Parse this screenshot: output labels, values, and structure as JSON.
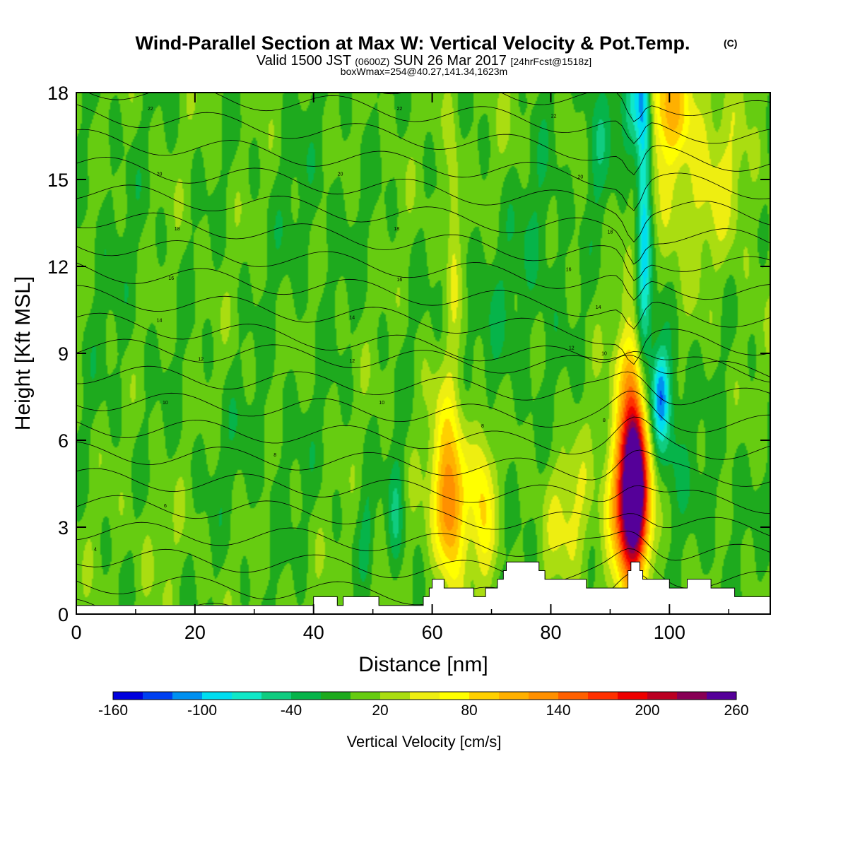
{
  "title": {
    "main": "Wind-Parallel Section at Max W: Vertical Velocity & Pot.Temp.",
    "copyright": "(C)",
    "valid_a": "Valid 1500 JST ",
    "valid_b": "(0600Z)",
    "valid_c": " SUN 26 Mar 2017 ",
    "valid_d": "[24hrFcst@1518z]",
    "box": "boxWmax=254@40.27,141.34,1623m"
  },
  "chart_data": {
    "type": "heatmap",
    "description_fields": "filled vertical velocity with potential temperature isentropes",
    "xlabel": "Distance [nm]",
    "ylabel": "Height [Kft MSL]",
    "xlim": [
      0,
      117
    ],
    "ylim": [
      0,
      18
    ],
    "xticks": [
      0,
      20,
      40,
      60,
      80,
      100
    ],
    "yticks": [
      0,
      3,
      6,
      9,
      12,
      15,
      18
    ],
    "colorbar": {
      "label": "Vertical Velocity [cm/s]",
      "tick_labels": [
        -160,
        -100,
        -40,
        20,
        80,
        140,
        200,
        260
      ],
      "levels": [
        -160,
        -140,
        -120,
        -100,
        -80,
        -60,
        -40,
        -20,
        0,
        20,
        40,
        60,
        80,
        100,
        120,
        140,
        160,
        180,
        200,
        220,
        240,
        260
      ],
      "colors": [
        "#0000dd",
        "#0040f0",
        "#0090f0",
        "#00ddf0",
        "#10e8c8",
        "#10cc80",
        "#06b44a",
        "#1eaa1e",
        "#66cc11",
        "#aadd11",
        "#eeee11",
        "#ffff00",
        "#ffd000",
        "#ffb000",
        "#ff9000",
        "#ff6000",
        "#ff3000",
        "#ee0000",
        "#bb0022",
        "#880055",
        "#550099"
      ]
    },
    "background_w": 5,
    "updrafts": [
      {
        "x": 94,
        "z": 5.0,
        "sx": 1.6,
        "sz": 2.3,
        "w": 260
      },
      {
        "x": 94,
        "z": 3.6,
        "sx": 2.4,
        "sz": 1.6,
        "w": 105
      },
      {
        "x": 91.5,
        "z": 3.8,
        "sx": 1.6,
        "sz": 2.2,
        "w": 55
      },
      {
        "x": 93.5,
        "z": 8.6,
        "sx": 1.8,
        "sz": 1.0,
        "w": 40
      },
      {
        "x": 63,
        "z": 3.6,
        "sx": 1.6,
        "sz": 1.6,
        "w": 110
      },
      {
        "x": 63,
        "z": 5.3,
        "sx": 2.6,
        "sz": 2.4,
        "w": 55
      },
      {
        "x": 68.5,
        "z": 3.8,
        "sx": 1.3,
        "sz": 2.0,
        "w": 70
      },
      {
        "x": 83,
        "z": 3.4,
        "sx": 3.2,
        "sz": 1.6,
        "w": 38
      },
      {
        "x": 63.5,
        "z": 13.5,
        "sx": 0.9,
        "sz": 2.8,
        "w": 45
      },
      {
        "x": 99,
        "z": 17.6,
        "sx": 3.5,
        "sz": 1.3,
        "w": 75
      },
      {
        "x": 101,
        "z": 15.5,
        "sx": 4.5,
        "sz": 2.8,
        "w": 38
      },
      {
        "x": 110,
        "z": 14.8,
        "sx": 3.5,
        "sz": 2.0,
        "w": 28
      },
      {
        "x": 75,
        "z": 16.5,
        "sx": 3.0,
        "sz": 2.0,
        "w": 12
      },
      {
        "x": 50,
        "z": 1.0,
        "sx": 3.5,
        "sz": 1.0,
        "w": 12
      },
      {
        "x": 13,
        "z": 2.5,
        "sx": 4.0,
        "sz": 1.5,
        "w": 10
      }
    ],
    "downdrafts": [
      {
        "x": 95.7,
        "z": 14.5,
        "sx": 0.9,
        "sz": 4.5,
        "w": -110
      },
      {
        "x": 94.5,
        "z": 17.5,
        "sx": 2.2,
        "sz": 1.3,
        "w": -90
      },
      {
        "x": 98.5,
        "z": 7.6,
        "sx": 1.0,
        "sz": 1.1,
        "w": -85
      },
      {
        "x": 99,
        "z": 7.0,
        "sx": 2.4,
        "sz": 2.2,
        "w": -45
      },
      {
        "x": 54,
        "z": 3.0,
        "sx": 1.0,
        "sz": 1.8,
        "w": -45
      },
      {
        "x": 49,
        "z": 2.3,
        "sx": 1.0,
        "sz": 1.5,
        "w": -30
      },
      {
        "x": 78,
        "z": 14.0,
        "sx": 3.0,
        "sz": 3.0,
        "w": -22
      },
      {
        "x": 88,
        "z": 16.5,
        "sx": 1.5,
        "sz": 2.0,
        "w": -35
      },
      {
        "x": 70,
        "z": 10.0,
        "sx": 6.0,
        "sz": 3.0,
        "w": -16
      },
      {
        "x": 40,
        "z": 14.0,
        "sx": 6.0,
        "sz": 3.0,
        "w": -12
      },
      {
        "x": 6,
        "z": 12.0,
        "sx": 5.0,
        "sz": 4.0,
        "w": -10
      },
      {
        "x": 30,
        "z": 5.5,
        "sx": 8.0,
        "sz": 2.0,
        "w": -12
      },
      {
        "x": 108,
        "z": 4.0,
        "sx": 4.0,
        "sz": 2.0,
        "w": -14
      }
    ],
    "terrain": [
      [
        0,
        0.3
      ],
      [
        40,
        0.3
      ],
      [
        40,
        0.6
      ],
      [
        44,
        0.6
      ],
      [
        44,
        0.3
      ],
      [
        45,
        0.3
      ],
      [
        45,
        0.6
      ],
      [
        51,
        0.6
      ],
      [
        51,
        0.3
      ],
      [
        58.5,
        0.3
      ],
      [
        58.5,
        0.6
      ],
      [
        59.5,
        0.6
      ],
      [
        59.5,
        0.9
      ],
      [
        60,
        0.9
      ],
      [
        60,
        1.2
      ],
      [
        62,
        1.2
      ],
      [
        62,
        0.9
      ],
      [
        67,
        0.9
      ],
      [
        67,
        0.6
      ],
      [
        69,
        0.6
      ],
      [
        69,
        0.9
      ],
      [
        71,
        0.9
      ],
      [
        71,
        1.2
      ],
      [
        72,
        1.2
      ],
      [
        72,
        1.5
      ],
      [
        72.5,
        1.5
      ],
      [
        72.5,
        1.8
      ],
      [
        78,
        1.8
      ],
      [
        78,
        1.5
      ],
      [
        79,
        1.5
      ],
      [
        79,
        1.2
      ],
      [
        86,
        1.2
      ],
      [
        86,
        0.9
      ],
      [
        93,
        0.9
      ],
      [
        93,
        1.5
      ],
      [
        93.5,
        1.5
      ],
      [
        93.5,
        1.8
      ],
      [
        95,
        1.8
      ],
      [
        95,
        1.5
      ],
      [
        95.5,
        1.5
      ],
      [
        95.5,
        1.2
      ],
      [
        100,
        1.2
      ],
      [
        100,
        0.9
      ],
      [
        103,
        0.9
      ],
      [
        103,
        1.2
      ],
      [
        107,
        1.2
      ],
      [
        107,
        0.9
      ],
      [
        111,
        0.9
      ],
      [
        111,
        0.6
      ],
      [
        117,
        0.6
      ]
    ],
    "isentropes": {
      "levels": [
        4,
        6,
        8,
        10,
        12,
        14,
        16,
        18,
        20,
        22
      ],
      "description": "potential temperature contours (C)",
      "labels": [
        {
          "text": "4",
          "x": 3.2,
          "z": 2.25
        },
        {
          "text": "6",
          "x": 15,
          "z": 3.75
        },
        {
          "text": "8",
          "x": 33.5,
          "z": 5.5
        },
        {
          "text": "8",
          "x": 68.5,
          "z": 6.5
        },
        {
          "text": "8",
          "x": 89,
          "z": 6.7
        },
        {
          "text": "10",
          "x": 15,
          "z": 7.3
        },
        {
          "text": "10",
          "x": 51.5,
          "z": 7.3
        },
        {
          "text": "10",
          "x": 89,
          "z": 9.0
        },
        {
          "text": "12",
          "x": 21,
          "z": 8.8
        },
        {
          "text": "12",
          "x": 46.5,
          "z": 8.75
        },
        {
          "text": "12",
          "x": 83.5,
          "z": 9.2
        },
        {
          "text": "14",
          "x": 14,
          "z": 10.15
        },
        {
          "text": "14",
          "x": 46.5,
          "z": 10.25
        },
        {
          "text": "14",
          "x": 88,
          "z": 10.6
        },
        {
          "text": "16",
          "x": 16,
          "z": 11.6
        },
        {
          "text": "16",
          "x": 54.5,
          "z": 11.55
        },
        {
          "text": "16",
          "x": 83,
          "z": 11.9
        },
        {
          "text": "18",
          "x": 17,
          "z": 13.3
        },
        {
          "text": "18",
          "x": 54,
          "z": 13.3
        },
        {
          "text": "18",
          "x": 90,
          "z": 13.2
        },
        {
          "text": "20",
          "x": 14,
          "z": 15.2
        },
        {
          "text": "20",
          "x": 44.5,
          "z": 15.2
        },
        {
          "text": "20",
          "x": 85,
          "z": 15.1
        },
        {
          "text": "22",
          "x": 12.5,
          "z": 17.45
        },
        {
          "text": "22",
          "x": 54.5,
          "z": 17.45
        },
        {
          "text": "22",
          "x": 80.5,
          "z": 17.2
        }
      ]
    }
  }
}
